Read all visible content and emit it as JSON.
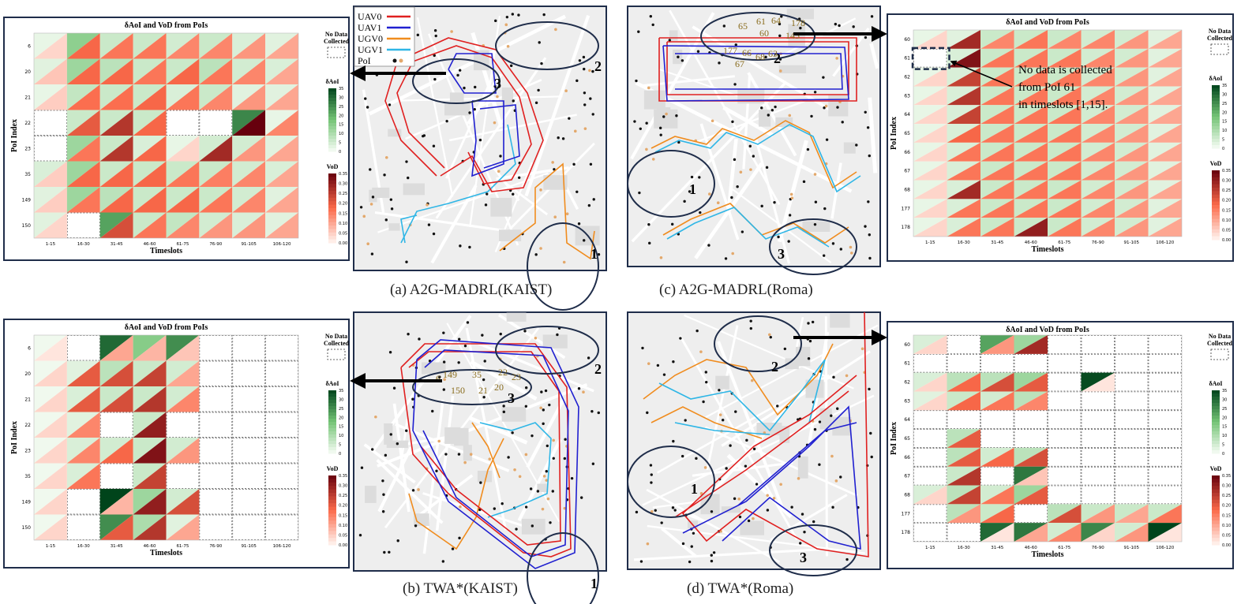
{
  "heatmap_common": {
    "title": "δAoI and VoD from PoIs",
    "ylabel": "PoI Index",
    "xlabel": "Timeslots",
    "timeslots": [
      "1-15",
      "16-30",
      "31-45",
      "46-60",
      "61-75",
      "76-90",
      "91-105",
      "106-120"
    ],
    "no_data_label_1": "No Data",
    "no_data_label_2": "Collected",
    "aoi_cbar_label": "δAoI",
    "aoi_ticks": [
      "0",
      "5",
      "10",
      "15",
      "20",
      "25",
      "30",
      "35"
    ],
    "vod_cbar_label": "VoD",
    "vod_ticks": [
      "0.00",
      "0.05",
      "0.10",
      "0.15",
      "0.20",
      "0.25",
      "0.30",
      "0.35"
    ],
    "aoi_color": "#1b7a36",
    "vod_color": "#b3111d"
  },
  "chart_data": [
    {
      "type": "heatmap",
      "panel": "a",
      "pois": [
        "6",
        "20",
        "21",
        "22",
        "23",
        "35",
        "149",
        "150"
      ],
      "aoi": [
        [
          2,
          14,
          6,
          6,
          5,
          6,
          4,
          3
        ],
        [
          3,
          12,
          8,
          6,
          6,
          8,
          5,
          4
        ],
        [
          2,
          7,
          6,
          6,
          4,
          6,
          3,
          3
        ],
        [
          null,
          6,
          6,
          6,
          null,
          null,
          26,
          2
        ],
        [
          null,
          12,
          6,
          4,
          2,
          5,
          5,
          3
        ],
        [
          4,
          12,
          6,
          6,
          6,
          6,
          5,
          4
        ],
        [
          3,
          12,
          8,
          6,
          6,
          6,
          5,
          3
        ],
        [
          3,
          null,
          22,
          6,
          7,
          5,
          4,
          3
        ]
      ],
      "vod": [
        [
          0.04,
          0.18,
          0.16,
          0.16,
          0.14,
          0.14,
          0.12,
          0.1
        ],
        [
          0.06,
          0.18,
          0.18,
          0.16,
          0.18,
          0.16,
          0.14,
          0.1
        ],
        [
          0.05,
          0.17,
          0.17,
          0.18,
          0.16,
          0.14,
          0.12,
          0.1
        ],
        [
          null,
          0.2,
          0.26,
          0.18,
          null,
          null,
          0.35,
          0.14
        ],
        [
          null,
          0.16,
          0.26,
          0.18,
          0.04,
          0.28,
          0.12,
          0.1
        ],
        [
          0.05,
          0.18,
          0.18,
          0.18,
          0.16,
          0.15,
          0.14,
          0.1
        ],
        [
          0.05,
          0.16,
          0.18,
          0.18,
          0.18,
          0.16,
          0.14,
          0.1
        ],
        [
          0.04,
          null,
          0.22,
          0.16,
          0.14,
          0.12,
          0.12,
          0.1
        ]
      ]
    },
    {
      "type": "heatmap",
      "panel": "b",
      "pois": [
        "6",
        "20",
        "21",
        "22",
        "23",
        "35",
        "149",
        "150"
      ],
      "aoi": [
        [
          1,
          null,
          30,
          15,
          25,
          null,
          null,
          null
        ],
        [
          1,
          3,
          8,
          6,
          5,
          null,
          null,
          null
        ],
        [
          1,
          4,
          6,
          6,
          5,
          null,
          null,
          null
        ],
        [
          1,
          3,
          null,
          6,
          null,
          null,
          null,
          null
        ],
        [
          1,
          4,
          5,
          6,
          5,
          null,
          null,
          null
        ],
        [
          1,
          4,
          null,
          6,
          null,
          null,
          null,
          null
        ],
        [
          1,
          null,
          35,
          12,
          5,
          null,
          null,
          null
        ],
        [
          1,
          null,
          25,
          10,
          3,
          null,
          null,
          null
        ]
      ],
      "vod": [
        [
          0.02,
          null,
          0.1,
          0.08,
          0.06,
          null,
          null,
          null
        ],
        [
          0.04,
          0.2,
          0.22,
          0.24,
          0.1,
          null,
          null,
          null
        ],
        [
          0.04,
          0.2,
          0.22,
          0.26,
          0.14,
          null,
          null,
          null
        ],
        [
          0.04,
          0.14,
          null,
          0.3,
          null,
          null,
          null,
          null
        ],
        [
          0.04,
          0.14,
          0.18,
          0.32,
          0.12,
          null,
          null,
          null
        ],
        [
          0.04,
          0.16,
          null,
          0.24,
          null,
          null,
          null,
          null
        ],
        [
          0.04,
          null,
          0.08,
          0.3,
          0.22,
          null,
          null,
          null
        ],
        [
          0.04,
          null,
          0.2,
          0.26,
          0.1,
          null,
          null,
          null
        ]
      ]
    },
    {
      "type": "heatmap",
      "panel": "c",
      "pois": [
        "60",
        "61",
        "62",
        "63",
        "64",
        "65",
        "66",
        "67",
        "68",
        "177",
        "178"
      ],
      "aoi": [
        [
          2,
          3,
          6,
          6,
          6,
          5,
          5,
          3
        ],
        [
          null,
          4,
          6,
          6,
          6,
          5,
          5,
          3
        ],
        [
          2,
          4,
          6,
          6,
          6,
          5,
          5,
          3
        ],
        [
          2,
          4,
          6,
          6,
          6,
          5,
          5,
          3
        ],
        [
          2,
          4,
          6,
          6,
          6,
          5,
          5,
          3
        ],
        [
          2,
          4,
          6,
          6,
          6,
          5,
          5,
          3
        ],
        [
          2,
          4,
          6,
          6,
          6,
          5,
          5,
          3
        ],
        [
          2,
          4,
          6,
          6,
          6,
          5,
          5,
          3
        ],
        [
          2,
          4,
          6,
          6,
          6,
          5,
          5,
          3
        ],
        [
          2,
          4,
          6,
          6,
          6,
          5,
          5,
          3
        ],
        [
          2,
          4,
          6,
          6,
          6,
          5,
          5,
          3
        ]
      ],
      "vod": [
        [
          0.04,
          0.28,
          0.14,
          0.16,
          0.14,
          0.14,
          0.12,
          0.1
        ],
        [
          null,
          0.32,
          0.16,
          0.16,
          0.16,
          0.14,
          0.12,
          0.1
        ],
        [
          0.04,
          0.24,
          0.16,
          0.16,
          0.16,
          0.14,
          0.12,
          0.1
        ],
        [
          0.04,
          0.26,
          0.16,
          0.16,
          0.16,
          0.14,
          0.12,
          0.1
        ],
        [
          0.04,
          0.24,
          0.16,
          0.16,
          0.16,
          0.14,
          0.12,
          0.1
        ],
        [
          0.04,
          0.18,
          0.16,
          0.16,
          0.16,
          0.14,
          0.12,
          0.1
        ],
        [
          0.04,
          0.16,
          0.16,
          0.16,
          0.16,
          0.14,
          0.12,
          0.1
        ],
        [
          0.04,
          0.16,
          0.16,
          0.16,
          0.16,
          0.14,
          0.12,
          0.1
        ],
        [
          0.04,
          0.28,
          0.16,
          0.16,
          0.16,
          0.14,
          0.12,
          0.1
        ],
        [
          0.04,
          0.16,
          0.16,
          0.16,
          0.16,
          0.14,
          0.12,
          0.1
        ],
        [
          0.04,
          0.16,
          0.16,
          0.3,
          0.16,
          0.14,
          0.12,
          0.1
        ]
      ]
    },
    {
      "type": "heatmap",
      "panel": "d",
      "pois": [
        "60",
        "61",
        "62",
        "63",
        "64",
        "65",
        "66",
        "67",
        "68",
        "177",
        "178"
      ],
      "aoi": [
        [
          4,
          null,
          22,
          12,
          null,
          null,
          null,
          null
        ],
        [
          null,
          null,
          null,
          null,
          null,
          null,
          null,
          null
        ],
        [
          4,
          8,
          8,
          12,
          null,
          34,
          null,
          null
        ],
        [
          3,
          6,
          5,
          8,
          null,
          null,
          null,
          null
        ],
        [
          null,
          null,
          null,
          null,
          null,
          null,
          null,
          null
        ],
        [
          null,
          8,
          null,
          null,
          null,
          null,
          null,
          null
        ],
        [
          null,
          8,
          5,
          8,
          null,
          null,
          null,
          null
        ],
        [
          null,
          6,
          null,
          28,
          null,
          null,
          null,
          null
        ],
        [
          4,
          8,
          5,
          12,
          null,
          null,
          null,
          null
        ],
        [
          null,
          8,
          6,
          null,
          8,
          6,
          6,
          6
        ],
        [
          null,
          null,
          30,
          28,
          5,
          26,
          5,
          38
        ]
      ],
      "vod": [
        [
          0.04,
          null,
          0.12,
          0.28,
          null,
          null,
          null,
          null
        ],
        [
          null,
          null,
          null,
          null,
          null,
          null,
          null,
          null
        ],
        [
          0.04,
          0.18,
          0.22,
          0.2,
          null,
          0.02,
          null,
          null
        ],
        [
          0.04,
          0.18,
          0.16,
          0.14,
          null,
          null,
          null,
          null
        ],
        [
          null,
          null,
          null,
          null,
          null,
          null,
          null,
          null
        ],
        [
          null,
          0.2,
          null,
          null,
          null,
          null,
          null,
          null
        ],
        [
          null,
          0.2,
          0.18,
          0.22,
          null,
          null,
          null,
          null
        ],
        [
          null,
          0.26,
          null,
          0.06,
          null,
          null,
          null,
          null
        ],
        [
          0.04,
          0.24,
          0.16,
          0.2,
          null,
          null,
          null,
          null
        ],
        [
          null,
          0.12,
          0.18,
          null,
          0.22,
          0.12,
          0.1,
          0.16
        ],
        [
          null,
          null,
          0.02,
          0.1,
          0.14,
          0.04,
          0.12,
          0.02
        ]
      ]
    }
  ],
  "maps": [
    {
      "panel": "a",
      "legend": [
        {
          "label": "UAV0",
          "color": "#e02020"
        },
        {
          "label": "UAV1",
          "color": "#2020d0"
        },
        {
          "label": "UGV0",
          "color": "#f08c1e"
        },
        {
          "label": "UGV1",
          "color": "#2fb6e6"
        },
        {
          "label": "PoI"
        }
      ],
      "region_labels": [
        "1",
        "2",
        "3"
      ],
      "numbers": []
    },
    {
      "panel": "b",
      "region_labels": [
        "1",
        "2",
        "3"
      ],
      "numbers": [
        "6",
        "149",
        "35",
        "22",
        "23",
        "150",
        "21",
        "20"
      ]
    },
    {
      "panel": "c",
      "region_labels": [
        "1",
        "2",
        "3"
      ],
      "numbers": [
        "65",
        "61",
        "64",
        "178",
        "60",
        "145",
        "177",
        "66",
        "68",
        "63",
        "67"
      ]
    },
    {
      "panel": "d",
      "region_labels": [
        "1",
        "2",
        "3"
      ],
      "numbers": []
    }
  ],
  "annotation": {
    "line1": "No data is collected",
    "line2": "from PoI 61",
    "line3": "in timeslots [1,15]."
  },
  "captions": {
    "a": "(a) A2G-MADRL(KAIST)",
    "b": "(b) TWA*(KAIST)",
    "c": "(c) A2G-MADRL(Roma)",
    "d": "(d) TWA*(Roma)"
  }
}
